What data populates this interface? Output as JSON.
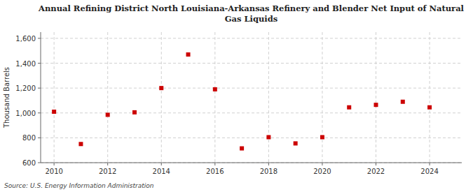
{
  "chart_data": {
    "type": "scatter",
    "title": "Annual Refining District North Louisiana-Arkansas Refinery and Blender Net Input of Natural\nGas Liquids",
    "y_label": "Thousand Barrels",
    "source": "Source: U.S. Energy Information Administration",
    "x": [
      2010,
      2011,
      2012,
      2013,
      2014,
      2015,
      2016,
      2017,
      2018,
      2019,
      2020,
      2021,
      2022,
      2023,
      2024
    ],
    "values": [
      1010,
      750,
      985,
      1005,
      1200,
      1470,
      1190,
      715,
      805,
      755,
      805,
      1045,
      1065,
      1090,
      1045
    ],
    "color": "#cc0000",
    "marker": "square",
    "xlim": [
      2009.5,
      2025.2
    ],
    "xticks": [
      2010,
      2012,
      2014,
      2016,
      2018,
      2020,
      2022,
      2024
    ],
    "ylim": [
      600,
      1650
    ],
    "yticks": [
      600,
      800,
      {
        "value": 1000,
        "label": "1,000"
      },
      {
        "value": 1200,
        "label": "1,200"
      },
      {
        "value": 1400,
        "label": "1,400"
      },
      {
        "value": 1600,
        "label": "1,600"
      }
    ],
    "grid": true
  }
}
